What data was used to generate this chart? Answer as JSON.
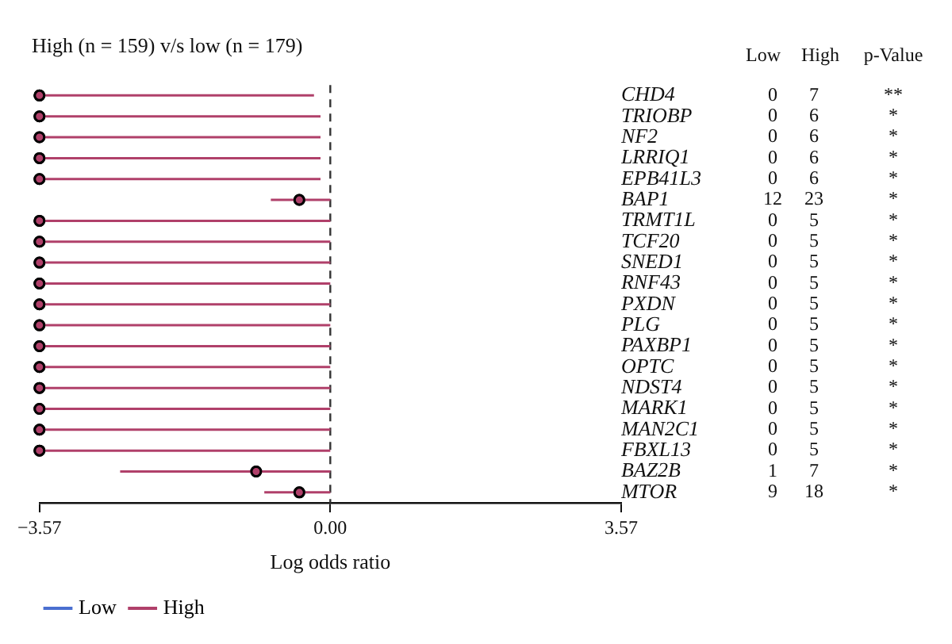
{
  "chart_data": {
    "type": "scatter",
    "orientation": "horizontal",
    "title": "High (n = 159) v/s low (n = 179)",
    "xlabel": "Log odds ratio",
    "categories": [
      "CHD4",
      "TRIOBP",
      "NF2",
      "LRRIQ1",
      "EPB41L3",
      "BAP1",
      "TRMT1L",
      "TCF20",
      "SNED1",
      "RNF43",
      "PXDN",
      "PLG",
      "PAXBP1",
      "OPTC",
      "NDST4",
      "MARK1",
      "MAN2C1",
      "FBXL13",
      "BAZ2B",
      "MTOR"
    ],
    "series": [
      {
        "name": "Low",
        "color": "#4a6fd0",
        "values": [
          null,
          null,
          null,
          null,
          null,
          null,
          null,
          null,
          null,
          null,
          null,
          null,
          null,
          null,
          null,
          null,
          null,
          null,
          null,
          null
        ]
      },
      {
        "name": "High",
        "color": "#b0406a",
        "values": [
          -3.57,
          -3.57,
          -3.57,
          -3.57,
          -3.57,
          -0.38,
          -3.57,
          -3.57,
          -3.57,
          -3.57,
          -3.57,
          -3.57,
          -3.57,
          -3.57,
          -3.57,
          -3.57,
          -3.57,
          -3.57,
          -0.91,
          -0.38
        ],
        "errors": [
          [
            -3.57,
            -0.2
          ],
          [
            -3.57,
            -0.12
          ],
          [
            -3.57,
            -0.12
          ],
          [
            -3.57,
            -0.12
          ],
          [
            -3.57,
            -0.12
          ],
          [
            -0.73,
            0
          ],
          [
            -3.57,
            0
          ],
          [
            -3.57,
            0
          ],
          [
            -3.57,
            0
          ],
          [
            -3.57,
            0
          ],
          [
            -3.57,
            0
          ],
          [
            -3.57,
            0
          ],
          [
            -3.57,
            0
          ],
          [
            -3.57,
            0
          ],
          [
            -3.57,
            0
          ],
          [
            -3.57,
            0
          ],
          [
            -3.57,
            0
          ],
          [
            -3.57,
            0
          ],
          [
            -2.58,
            0
          ],
          [
            -0.81,
            0
          ]
        ]
      }
    ],
    "xlim": [
      -3.57,
      3.57
    ],
    "xticks": [
      {
        "value": -3.57,
        "label": "−3.57"
      },
      {
        "value": 0,
        "label": "0.00"
      },
      3.57
    ],
    "ref_lines": [
      {
        "axis": "x",
        "value": 0,
        "line_style": "dashed",
        "color": "#333333"
      }
    ],
    "marker": "circle",
    "legend": "bottom left",
    "grid": false,
    "annotations": [
      "Low",
      "High",
      "p-Value",
      "0",
      "7",
      "**",
      "0",
      "6",
      "*",
      "0",
      "6",
      "*",
      "0",
      "6",
      "*",
      "0",
      "6",
      "*",
      "12",
      "23",
      "*",
      "0",
      "5",
      "*",
      "0",
      "5",
      "*",
      "0",
      "5",
      "*",
      "0",
      "5",
      "*",
      "0",
      "5",
      "*",
      "0",
      "5",
      "*",
      "0",
      "5",
      "*",
      "0",
      "5",
      "*",
      "0",
      "5",
      "*",
      "0",
      "5",
      "*",
      "0",
      "5",
      "*",
      "0",
      "5",
      "*",
      "1",
      "7",
      "*",
      "9",
      "18",
      "*"
    ]
  }
}
